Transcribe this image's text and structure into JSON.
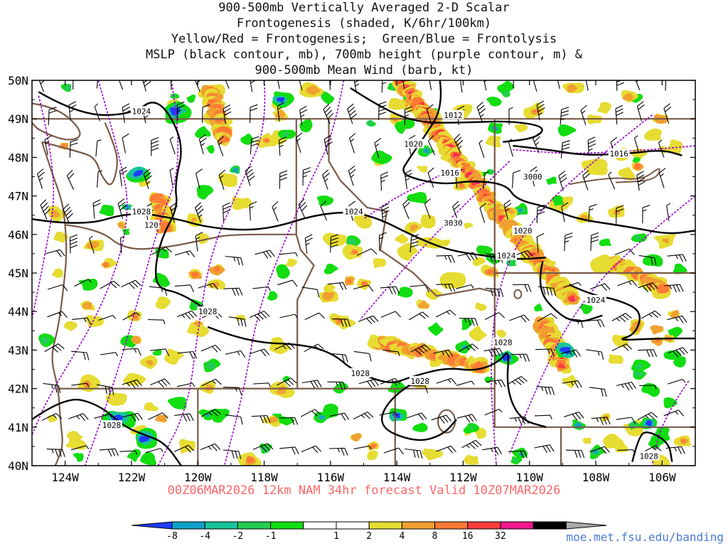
{
  "title_lines": [
    "900-500mb Vertically Averaged 2-D Scalar",
    "Frontogenesis (shaded, K/6hr/100km)",
    "Yellow/Red = Frontogenesis;  Green/Blue = Frontolysis",
    "MSLP (black contour, mb), 700mb height (purple contour, m) &",
    "900-500mb Mean Wind (barb, kt)"
  ],
  "valid_text": "00Z06MAR2026 12km NAM 34hr forecast Valid 10Z07MAR2026",
  "credit": "moe.met.fsu.edu/banding",
  "map": {
    "lat_labels": [
      "50N",
      "49N",
      "48N",
      "47N",
      "46N",
      "45N",
      "44N",
      "43N",
      "42N",
      "41N",
      "40N"
    ],
    "lat_values": [
      50,
      49,
      48,
      47,
      46,
      45,
      44,
      43,
      42,
      41,
      40
    ],
    "lon_labels": [
      "124W",
      "122W",
      "120W",
      "118W",
      "116W",
      "114W",
      "112W",
      "110W",
      "108W",
      "106W"
    ],
    "lon_values": [
      -124,
      -122,
      -120,
      -118,
      -116,
      -114,
      -112,
      -110,
      -108,
      -106
    ],
    "extent": {
      "west": -125,
      "east": -105,
      "south": 40,
      "north": 50
    },
    "mslp_labels": [
      {
        "text": "1024",
        "lon": -121.7,
        "lat": 49.2
      },
      {
        "text": "1012",
        "lon": -112.3,
        "lat": 49.1
      },
      {
        "text": "1020",
        "lon": -113.5,
        "lat": 48.35
      },
      {
        "text": "1016",
        "lon": -112.4,
        "lat": 47.6
      },
      {
        "text": "1016",
        "lon": -107.3,
        "lat": 48.1
      },
      {
        "text": "1028",
        "lon": -121.7,
        "lat": 46.6
      },
      {
        "text": "1024",
        "lon": -115.3,
        "lat": 46.6
      },
      {
        "text": "1020",
        "lon": -110.2,
        "lat": 46.1
      },
      {
        "text": "1024",
        "lon": -110.7,
        "lat": 45.45
      },
      {
        "text": "1024",
        "lon": -108.0,
        "lat": 44.3
      },
      {
        "text": "1028",
        "lon": -119.7,
        "lat": 44.0
      },
      {
        "text": "1028",
        "lon": -110.8,
        "lat": 43.2
      },
      {
        "text": "1028",
        "lon": -115.1,
        "lat": 42.4
      },
      {
        "text": "1028",
        "lon": -113.3,
        "lat": 42.2
      },
      {
        "text": "1028",
        "lon": -122.6,
        "lat": 41.05
      },
      {
        "text": "1028",
        "lon": -106.4,
        "lat": 40.25
      }
    ],
    "height_labels": [
      {
        "text": "120",
        "lon": -121.4,
        "lat": 46.25
      },
      {
        "text": "3030",
        "lon": -112.3,
        "lat": 46.3
      },
      {
        "text": "3000",
        "lon": -109.9,
        "lat": 47.5
      }
    ]
  },
  "colorbar": {
    "colors": [
      "#1e3cff",
      "#10a0c8",
      "#18c39b",
      "#22cc55",
      "#11dd11",
      "#ffffff",
      "#ffffff",
      "#e6dc32",
      "#f0a030",
      "#ff7a35",
      "#fa3c3c",
      "#f0168c",
      "#000000",
      "#aaaaaa"
    ],
    "tick_labels": [
      "-8",
      "-4",
      "-2",
      "-1",
      "1",
      "2",
      "4",
      "8",
      "16",
      "32"
    ]
  },
  "colors": {
    "mslp": "#000000",
    "height": "#9900cc",
    "borders": "#7a5a48",
    "valid_text": "#ff6666",
    "credit": "#4a7ad6"
  }
}
